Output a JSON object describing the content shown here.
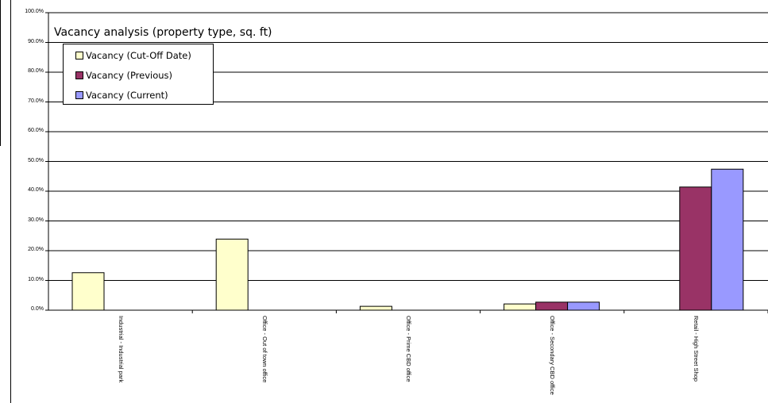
{
  "chart_data": {
    "type": "bar",
    "title": "Vacancy analysis (property type, sq. ft)",
    "categories": [
      "Industrial - Industrial park",
      "Office - Out of town office",
      "Office - Prime CBD office",
      "Office - Secondary CBD office",
      "Retail - High Street Shop"
    ],
    "series": [
      {
        "name": "Vacancy (Cut-Off Date)",
        "color": "#ffffcc",
        "values": [
          12.6,
          23.9,
          1.3,
          2.1,
          0.0
        ]
      },
      {
        "name": "Vacancy (Previous)",
        "color": "#993366",
        "values": [
          0.0,
          0.0,
          0.0,
          2.7,
          41.4
        ]
      },
      {
        "name": "Vacancy (Current)",
        "color": "#9999ff",
        "values": [
          0.0,
          0.0,
          0.0,
          2.7,
          47.4
        ]
      }
    ],
    "yticks": [
      "0.0%",
      "10.0%",
      "20.0%",
      "30.0%",
      "40.0%",
      "50.0%",
      "60.0%",
      "70.0%",
      "80.0%",
      "90.0%",
      "100.0%"
    ],
    "ylim": [
      0,
      100
    ],
    "grid": true,
    "legend_position": "top-left"
  }
}
